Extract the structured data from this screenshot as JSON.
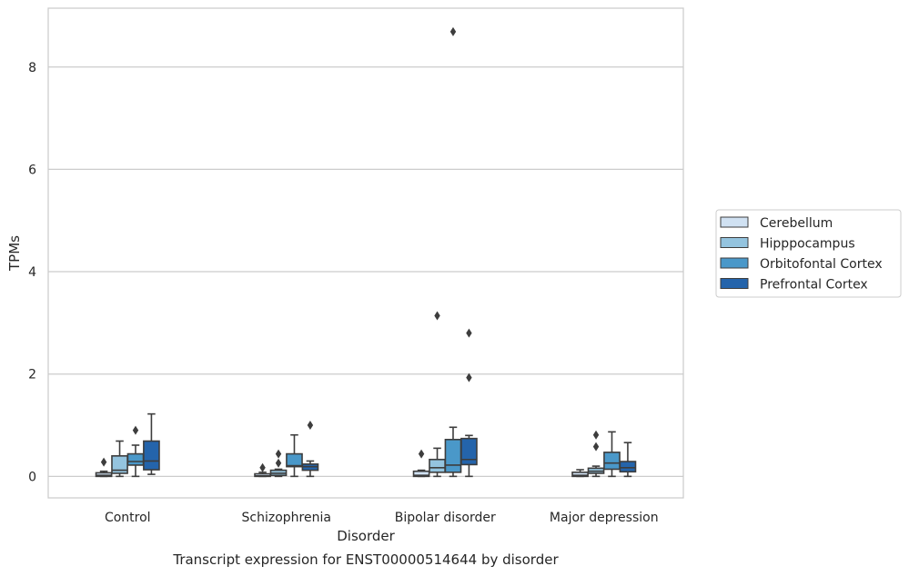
{
  "chart_data": {
    "type": "box",
    "title": "Transcript expression for ENST00000514644 by disorder",
    "xlabel": "Disorder",
    "ylabel": "TPMs",
    "ylim": [
      -0.42,
      9.15
    ],
    "yticks": [
      0,
      2,
      4,
      6,
      8
    ],
    "grid": "horizontal",
    "legend_position": "right",
    "categories": [
      "Control",
      "Schizophrenia",
      "Bipolar disorder",
      "Major depression"
    ],
    "series": [
      {
        "name": "Cerebellum",
        "color": "#d0e1f2",
        "boxes": [
          {
            "whislo": 0,
            "q1": 0,
            "med": 0.02,
            "q3": 0.07,
            "whishi": 0.1,
            "fliers": [
              0.28
            ]
          },
          {
            "whislo": 0,
            "q1": 0,
            "med": 0.01,
            "q3": 0.05,
            "whishi": 0.08,
            "fliers": [
              0.17
            ]
          },
          {
            "whislo": 0,
            "q1": 0,
            "med": 0.02,
            "q3": 0.1,
            "whishi": 0.12,
            "fliers": [
              0.44
            ]
          },
          {
            "whislo": 0,
            "q1": 0,
            "med": 0.02,
            "q3": 0.08,
            "whishi": 0.13,
            "fliers": []
          }
        ]
      },
      {
        "name": "Hipppocampus",
        "color": "#94c4df",
        "boxes": [
          {
            "whislo": 0,
            "q1": 0.06,
            "med": 0.12,
            "q3": 0.4,
            "whishi": 0.69,
            "fliers": []
          },
          {
            "whislo": 0,
            "q1": 0.02,
            "med": 0.06,
            "q3": 0.12,
            "whishi": 0.14,
            "fliers": [
              0.26,
              0.44
            ]
          },
          {
            "whislo": 0,
            "q1": 0.08,
            "med": 0.17,
            "q3": 0.33,
            "whishi": 0.55,
            "fliers": [
              3.14
            ]
          },
          {
            "whislo": 0,
            "q1": 0.06,
            "med": 0.1,
            "q3": 0.16,
            "whishi": 0.2,
            "fliers": [
              0.58,
              0.81
            ]
          }
        ]
      },
      {
        "name": "Orbitofontal Cortex",
        "color": "#4a98c9",
        "boxes": [
          {
            "whislo": 0,
            "q1": 0.22,
            "med": 0.29,
            "q3": 0.44,
            "whishi": 0.61,
            "fliers": [
              0.9
            ]
          },
          {
            "whislo": 0,
            "q1": 0.19,
            "med": 0.21,
            "q3": 0.44,
            "whishi": 0.81,
            "fliers": []
          },
          {
            "whislo": 0,
            "q1": 0.08,
            "med": 0.22,
            "q3": 0.72,
            "whishi": 0.96,
            "fliers": [
              8.69
            ]
          },
          {
            "whislo": 0,
            "q1": 0.14,
            "med": 0.26,
            "q3": 0.47,
            "whishi": 0.87,
            "fliers": []
          }
        ]
      },
      {
        "name": "Prefrontal Cortex",
        "color": "#2464ab",
        "boxes": [
          {
            "whislo": 0.04,
            "q1": 0.13,
            "med": 0.3,
            "q3": 0.69,
            "whishi": 1.22,
            "fliers": []
          },
          {
            "whislo": 0,
            "q1": 0.12,
            "med": 0.19,
            "q3": 0.24,
            "whishi": 0.3,
            "fliers": [
              1.0
            ]
          },
          {
            "whislo": 0,
            "q1": 0.23,
            "med": 0.33,
            "q3": 0.74,
            "whishi": 0.8,
            "fliers": [
              1.93,
              2.8
            ]
          },
          {
            "whislo": 0,
            "q1": 0.09,
            "med": 0.17,
            "q3": 0.29,
            "whishi": 0.66,
            "fliers": []
          }
        ]
      }
    ]
  }
}
